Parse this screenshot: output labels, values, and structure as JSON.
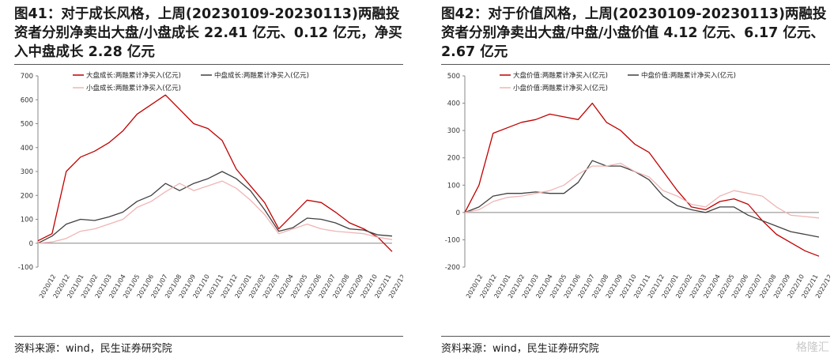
{
  "charts": [
    {
      "title": "图41：对于成长风格，上周(20230109-20230113)两融投资者分别净卖出大盘/小盘成长 22.41 亿元、0.12 亿元，净买入中盘成长 2.28 亿元",
      "source": "资料来源：wind，民生证券研究院",
      "chart_data": {
        "type": "line",
        "ylim": [
          -100,
          700
        ],
        "yticks": [
          -100,
          0,
          100,
          200,
          300,
          400,
          500,
          600,
          700
        ],
        "xticks": [
          "2020/12",
          "2020/12",
          "2021/01",
          "2021/02",
          "2021/03",
          "2021/04",
          "2021/05",
          "2021/06",
          "2021/07",
          "2021/08",
          "2021/09",
          "2021/10",
          "2021/11",
          "2021/12",
          "2022/01",
          "2022/02",
          "2022/03",
          "2022/04",
          "2022/05",
          "2022/06",
          "2022/07",
          "2022/08",
          "2022/09",
          "2022/10",
          "2022/11",
          "2022/12"
        ],
        "grid": false,
        "legend_position": "top",
        "x": [
          0,
          1,
          2,
          3,
          4,
          5,
          6,
          7,
          8,
          9,
          10,
          11,
          12,
          13,
          14,
          15,
          16,
          17,
          18,
          19,
          20,
          21,
          22,
          23,
          24,
          25
        ],
        "series": [
          {
            "name": "大盘成长:两融累计净买入(亿元)",
            "color": "#c00000",
            "width": 1.3,
            "values": [
              10,
              40,
              300,
              360,
              385,
              420,
              470,
              540,
              580,
              620,
              560,
              500,
              480,
              430,
              310,
              240,
              170,
              60,
              120,
              180,
              170,
              130,
              85,
              60,
              25,
              -35
            ]
          },
          {
            "name": "中盘成长:两融累计净买入(亿元)",
            "color": "#404040",
            "width": 1.3,
            "values": [
              0,
              30,
              80,
              100,
              95,
              110,
              130,
              175,
              200,
              250,
              220,
              250,
              270,
              300,
              270,
              220,
              140,
              50,
              65,
              105,
              100,
              85,
              60,
              55,
              35,
              30
            ]
          },
          {
            "name": "小盘成长:两融累计净买入(亿元)",
            "color": "#f0b4b4",
            "width": 1.3,
            "values": [
              0,
              5,
              20,
              50,
              60,
              80,
              100,
              150,
              175,
              215,
              250,
              220,
              240,
              260,
              230,
              180,
              120,
              40,
              60,
              80,
              60,
              50,
              45,
              40,
              25,
              15
            ]
          }
        ]
      }
    },
    {
      "title": "图42：对于价值风格，上周(20230109-20230113)两融投资者分别净卖出大盘/中盘/小盘价值 4.12 亿元、6.17 亿元、2.67 亿元",
      "source": "资料来源：wind，民生证券研究院",
      "chart_data": {
        "type": "line",
        "ylim": [
          -200,
          500
        ],
        "yticks": [
          -200,
          -100,
          0,
          100,
          200,
          300,
          400,
          500
        ],
        "xticks": [
          "2020/12",
          "2020/12",
          "2021/01",
          "2021/02",
          "2021/03",
          "2021/04",
          "2021/05",
          "2021/06",
          "2021/07",
          "2021/08",
          "2021/09",
          "2021/10",
          "2021/11",
          "2021/12",
          "2022/01",
          "2022/02",
          "2022/03",
          "2022/04",
          "2022/05",
          "2022/06",
          "2022/07",
          "2022/08",
          "2022/09",
          "2022/10",
          "2022/11",
          "2022/12"
        ],
        "grid": false,
        "legend_position": "top",
        "x": [
          0,
          1,
          2,
          3,
          4,
          5,
          6,
          7,
          8,
          9,
          10,
          11,
          12,
          13,
          14,
          15,
          16,
          17,
          18,
          19,
          20,
          21,
          22,
          23,
          24,
          25
        ],
        "series": [
          {
            "name": "大盘价值:两融累计净买入(亿元)",
            "color": "#c00000",
            "width": 1.3,
            "values": [
              0,
              100,
              290,
              310,
              330,
              340,
              360,
              350,
              340,
              400,
              330,
              300,
              250,
              220,
              150,
              80,
              20,
              10,
              40,
              50,
              30,
              -30,
              -80,
              -110,
              -140,
              -160
            ]
          },
          {
            "name": "中盘价值:两融累计净买入(亿元)",
            "color": "#404040",
            "width": 1.3,
            "values": [
              0,
              20,
              60,
              70,
              70,
              75,
              70,
              70,
              110,
              190,
              170,
              170,
              150,
              120,
              60,
              25,
              10,
              0,
              20,
              20,
              -10,
              -30,
              -50,
              -70,
              -80,
              -90
            ]
          },
          {
            "name": "小盘价值:两融累计净买入(亿元)",
            "color": "#f0b4b4",
            "width": 1.3,
            "values": [
              0,
              10,
              40,
              55,
              60,
              70,
              80,
              100,
              140,
              170,
              170,
              180,
              150,
              130,
              80,
              60,
              30,
              20,
              60,
              80,
              70,
              60,
              20,
              -10,
              -15,
              -20
            ]
          }
        ]
      }
    }
  ],
  "watermark": "格隆汇"
}
